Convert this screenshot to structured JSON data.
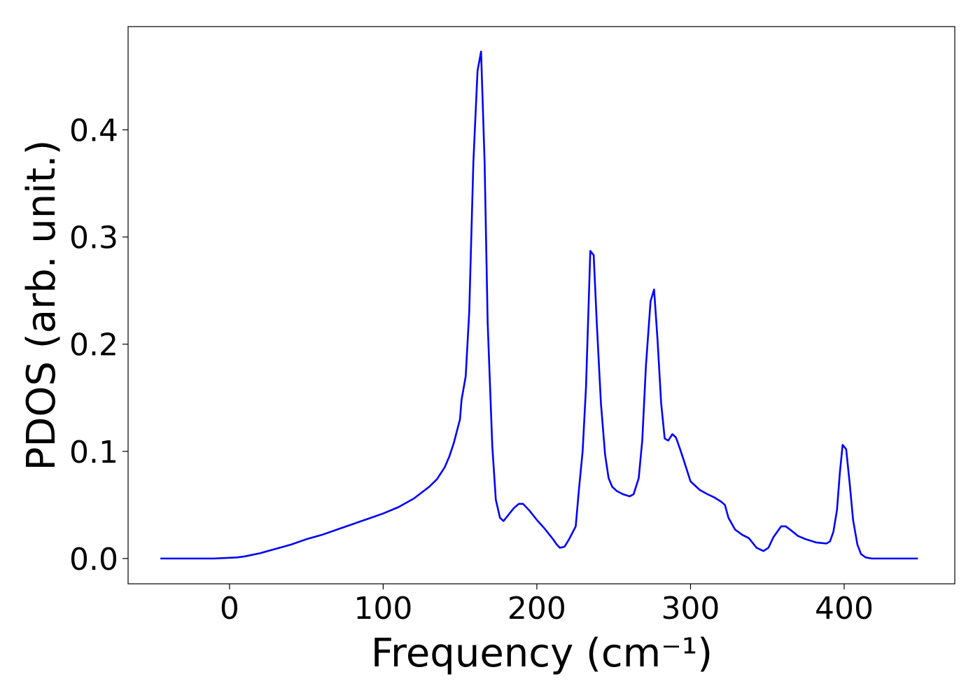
{
  "chart_data": {
    "type": "line",
    "xlabel": "Frequency (cm⁻¹)",
    "ylabel": "PDOS (arb. unit.)",
    "xlim": [
      -66,
      472
    ],
    "ylim": [
      -0.0236,
      0.4963
    ],
    "xticks": [
      0,
      100,
      200,
      300,
      400
    ],
    "yticks": [
      {
        "value": 0,
        "label": "0.0"
      },
      0.1,
      0.2,
      0.3,
      0.4
    ],
    "series": [
      {
        "color": "#0000ff",
        "x": [
          -45,
          -10,
          5,
          10,
          20,
          30,
          40,
          50,
          60,
          70,
          80,
          90,
          100,
          110,
          120,
          130,
          135,
          140,
          143,
          146,
          150,
          151,
          153.7,
          156,
          158.7,
          161.4,
          163.7,
          166,
          168,
          171,
          173.3,
          176,
          178.3,
          180,
          185,
          188.3,
          191,
          195,
          200,
          205,
          210,
          213,
          215,
          218,
          221,
          225.3,
          227.5,
          229.8,
          232,
          234.8,
          237,
          239,
          241.7,
          244.4,
          246.7,
          249,
          252,
          256,
          260.4,
          263,
          266.3,
          268.6,
          271,
          274,
          276.3,
          278.5,
          280.9,
          283.2,
          285.5,
          288.2,
          290.5,
          293,
          296,
          300,
          306,
          311,
          315.5,
          320,
          322.4,
          324.7,
          329,
          333.8,
          338,
          343,
          347.5,
          350.7,
          354,
          359,
          362,
          365.7,
          370,
          375,
          381.7,
          388.5,
          390.8,
          393,
          395.3,
          397.2,
          399,
          401.3,
          403.6,
          405.8,
          408.6,
          411,
          414,
          418,
          448
        ],
        "values": [
          0,
          0,
          0.001,
          0.002,
          0.005,
          0.009,
          0.013,
          0.018,
          0.022,
          0.027,
          0.032,
          0.037,
          0.042,
          0.048,
          0.056,
          0.067,
          0.074,
          0.085,
          0.095,
          0.108,
          0.13,
          0.148,
          0.17,
          0.23,
          0.37,
          0.455,
          0.473,
          0.37,
          0.22,
          0.105,
          0.055,
          0.038,
          0.035,
          0.038,
          0.047,
          0.051,
          0.051,
          0.045,
          0.036,
          0.028,
          0.019,
          0.013,
          0.01,
          0.011,
          0.018,
          0.03,
          0.066,
          0.1,
          0.16,
          0.287,
          0.283,
          0.22,
          0.145,
          0.097,
          0.075,
          0.067,
          0.063,
          0.06,
          0.058,
          0.06,
          0.075,
          0.11,
          0.18,
          0.24,
          0.251,
          0.205,
          0.145,
          0.112,
          0.11,
          0.116,
          0.113,
          0.103,
          0.09,
          0.072,
          0.064,
          0.06,
          0.057,
          0.053,
          0.05,
          0.038,
          0.027,
          0.022,
          0.019,
          0.01,
          0.007,
          0.01,
          0.02,
          0.03,
          0.03,
          0.026,
          0.021,
          0.018,
          0.015,
          0.014,
          0.016,
          0.025,
          0.045,
          0.08,
          0.106,
          0.102,
          0.07,
          0.036,
          0.013,
          0.004,
          0.001,
          0,
          0
        ]
      }
    ]
  }
}
